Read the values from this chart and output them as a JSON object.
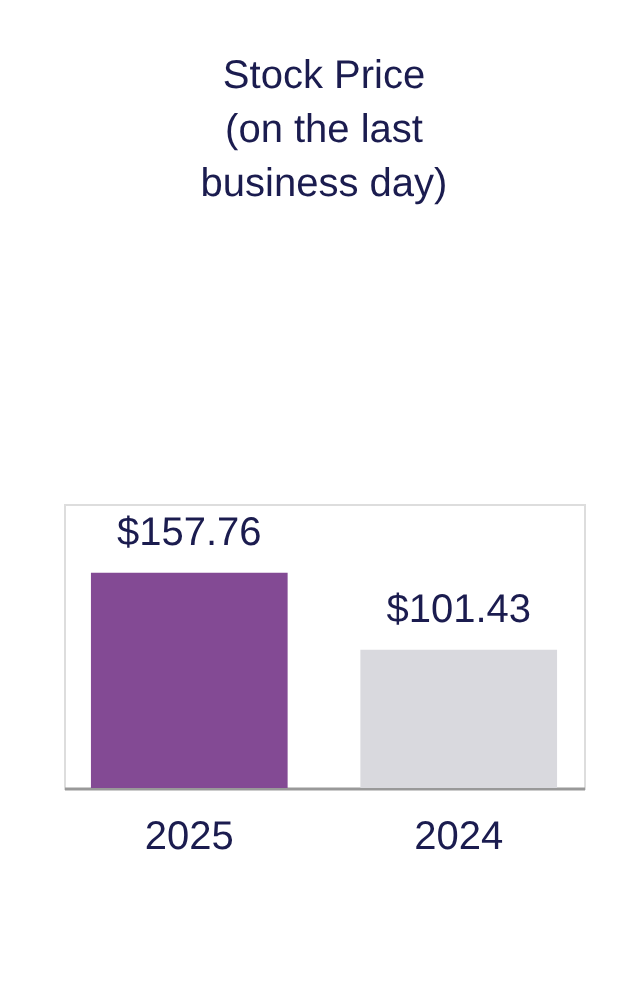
{
  "chart_data": {
    "type": "bar",
    "title": "Stock Price\n(on the last\nbusiness day)",
    "categories": [
      "2025",
      "2024"
    ],
    "values": [
      157.76,
      101.43
    ],
    "colors": [
      "#834a94",
      "#d9d9de"
    ],
    "value_labels": [
      "$157.76",
      "$101.43"
    ]
  }
}
